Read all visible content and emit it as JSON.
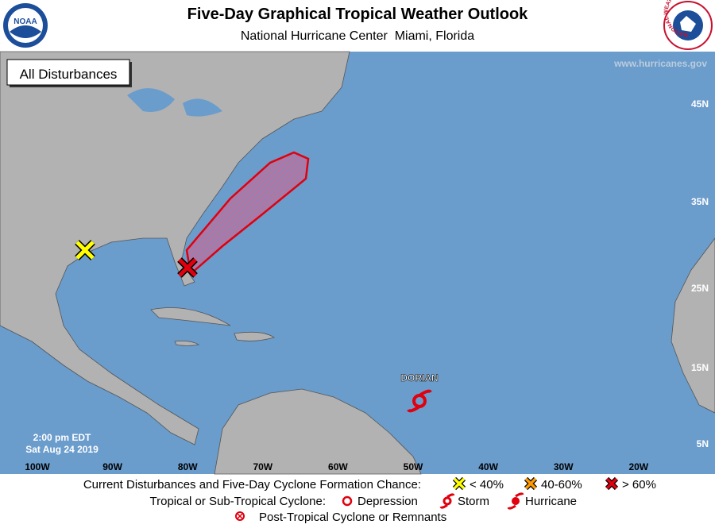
{
  "header": {
    "title": "Five-Day Graphical Tropical Weather Outlook",
    "subtitle": "National Hurricane Center  Miami, Florida",
    "noaa_logo": "NOAA",
    "nws_logo": "NATIONAL WEATHER SERVICE"
  },
  "map": {
    "url": "www.hurricanes.gov",
    "filter_button": "All Disturbances",
    "timestamp": [
      "2:00 pm EDT",
      "Sat Aug 24 2019"
    ],
    "latitude_labels": [
      "45N",
      "35N",
      "25N",
      "15N",
      "5N"
    ],
    "longitude_labels": [
      "100W",
      "90W",
      "80W",
      "70W",
      "60W",
      "50W",
      "40W",
      "30W",
      "20W"
    ],
    "storm_label": "DORIAN"
  },
  "legend": {
    "disturbance_title": "Current Disturbances and Five-Day Cyclone Formation Chance:",
    "chances": [
      "< 40%",
      "40-60%",
      "> 60%"
    ],
    "cyclone_title": "Tropical or Sub-Tropical Cyclone:",
    "cyclone_types": [
      "Depression",
      "Storm",
      "Hurricane"
    ],
    "post_tropical": "Post-Tropical Cyclone or Remnants"
  }
}
